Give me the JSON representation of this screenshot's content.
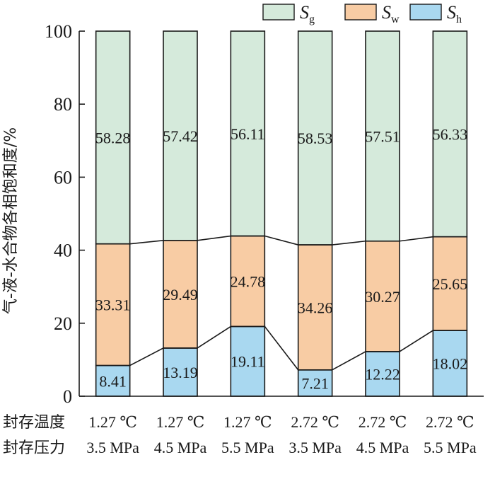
{
  "chart_data": {
    "type": "bar",
    "stacked": true,
    "ylabel": "气-液-水合物各相饱和度/%",
    "ylim": [
      0,
      100
    ],
    "yticks": [
      0,
      20,
      40,
      60,
      80,
      100
    ],
    "row_labels": [
      "封存温度",
      "封存压力"
    ],
    "categories": [
      {
        "temperature": "1.27 ℃",
        "pressure": "3.5 MPa"
      },
      {
        "temperature": "1.27 ℃",
        "pressure": "4.5 MPa"
      },
      {
        "temperature": "1.27 ℃",
        "pressure": "5.5 MPa"
      },
      {
        "temperature": "2.72 ℃",
        "pressure": "3.5 MPa"
      },
      {
        "temperature": "2.72 ℃",
        "pressure": "4.5 MPa"
      },
      {
        "temperature": "2.72 ℃",
        "pressure": "5.5 MPa"
      }
    ],
    "series": [
      {
        "name": "S",
        "subscript": "h",
        "color": "#a9d8f0",
        "values": [
          8.41,
          13.19,
          19.11,
          7.21,
          12.22,
          18.02
        ]
      },
      {
        "name": "S",
        "subscript": "w",
        "color": "#f8cca4",
        "values": [
          33.31,
          29.49,
          24.78,
          34.26,
          30.27,
          25.65
        ]
      },
      {
        "name": "S",
        "subscript": "g",
        "color": "#d5eadb",
        "values": [
          58.28,
          57.42,
          56.11,
          58.53,
          57.51,
          56.33
        ]
      }
    ],
    "legend_order": [
      "g",
      "w",
      "h"
    ],
    "legend_position": "top-right",
    "connecting_lines": true,
    "grid": false
  }
}
